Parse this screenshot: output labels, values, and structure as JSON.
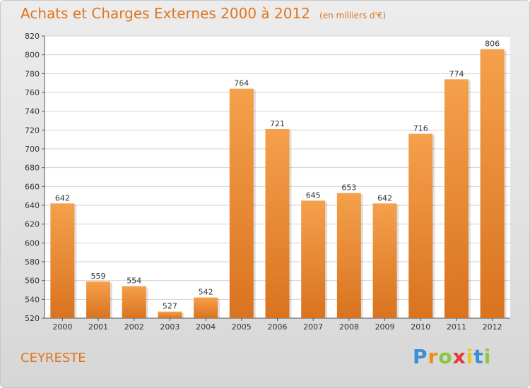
{
  "title": "Achats et Charges Externes 2000 à 2012",
  "unit_note": "(en milliers d'€)",
  "city": "CEYRESTE",
  "brand": {
    "letters": [
      "P",
      "r",
      "o",
      "x",
      "i",
      "t",
      "i"
    ],
    "colors": [
      "#3a8fd6",
      "#f08c1e",
      "#8cc63f",
      "#e23a3a",
      "#f0c419",
      "#3a8fd6",
      "#8cc63f"
    ]
  },
  "colors": {
    "bar_top": "#f5a04c",
    "bar_bottom": "#d9731f",
    "title": "#e1761f"
  },
  "chart_data": {
    "type": "bar",
    "title": "Achats et Charges Externes 2000 à 2012",
    "subtitle": "(en milliers d'€)",
    "categories": [
      "2000",
      "2001",
      "2002",
      "2003",
      "2004",
      "2005",
      "2006",
      "2007",
      "2008",
      "2009",
      "2010",
      "2011",
      "2012"
    ],
    "values": [
      642,
      559,
      554,
      527,
      542,
      764,
      721,
      645,
      653,
      642,
      716,
      774,
      806
    ],
    "ylim": [
      520,
      820
    ],
    "yticks": [
      520,
      540,
      560,
      580,
      600,
      620,
      640,
      660,
      680,
      700,
      720,
      740,
      760,
      780,
      800,
      820
    ],
    "grid": true
  }
}
